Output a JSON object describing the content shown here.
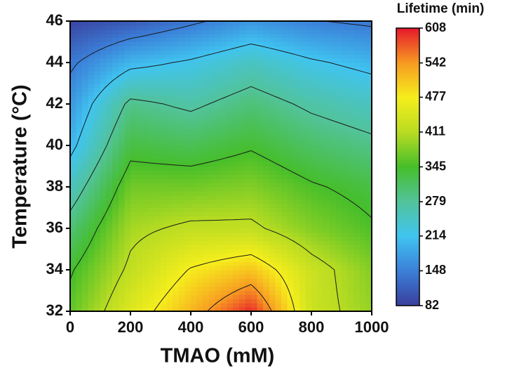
{
  "chart_data": {
    "type": "contour",
    "xlabel": "TMAO (mM)",
    "ylabel": "Temperature (°C)",
    "x": [
      0,
      200,
      400,
      600,
      800,
      1000
    ],
    "y": [
      32,
      34,
      36,
      38,
      40,
      42,
      44,
      46
    ],
    "z": [
      [
        360,
        450,
        520,
        600,
        430,
        390
      ],
      [
        340,
        420,
        480,
        510,
        430,
        380
      ],
      [
        300,
        400,
        420,
        420,
        380,
        350
      ],
      [
        250,
        370,
        370,
        380,
        350,
        330
      ],
      [
        200,
        330,
        320,
        340,
        310,
        290
      ],
      [
        170,
        290,
        270,
        300,
        270,
        250
      ],
      [
        140,
        200,
        220,
        250,
        220,
        200
      ],
      [
        90,
        110,
        140,
        170,
        150,
        140
      ]
    ],
    "xlim": [
      0,
      1000
    ],
    "ylim": [
      32,
      46
    ],
    "xticks": [
      0,
      200,
      400,
      600,
      800,
      1000
    ],
    "yticks": [
      32,
      34,
      36,
      38,
      40,
      42,
      44,
      46
    ],
    "colorbar": {
      "title": "Lifetime (min)",
      "lim": [
        82,
        608
      ],
      "ticks": [
        82,
        148,
        214,
        279,
        345,
        411,
        477,
        542,
        608
      ]
    },
    "colormap": [
      "#3a3f9c",
      "#3b7fd8",
      "#40c4f0",
      "#52c39a",
      "#46be2a",
      "#b9dc22",
      "#f6ee1c",
      "#f79a22",
      "#e5182c"
    ],
    "contour_lines": true
  }
}
